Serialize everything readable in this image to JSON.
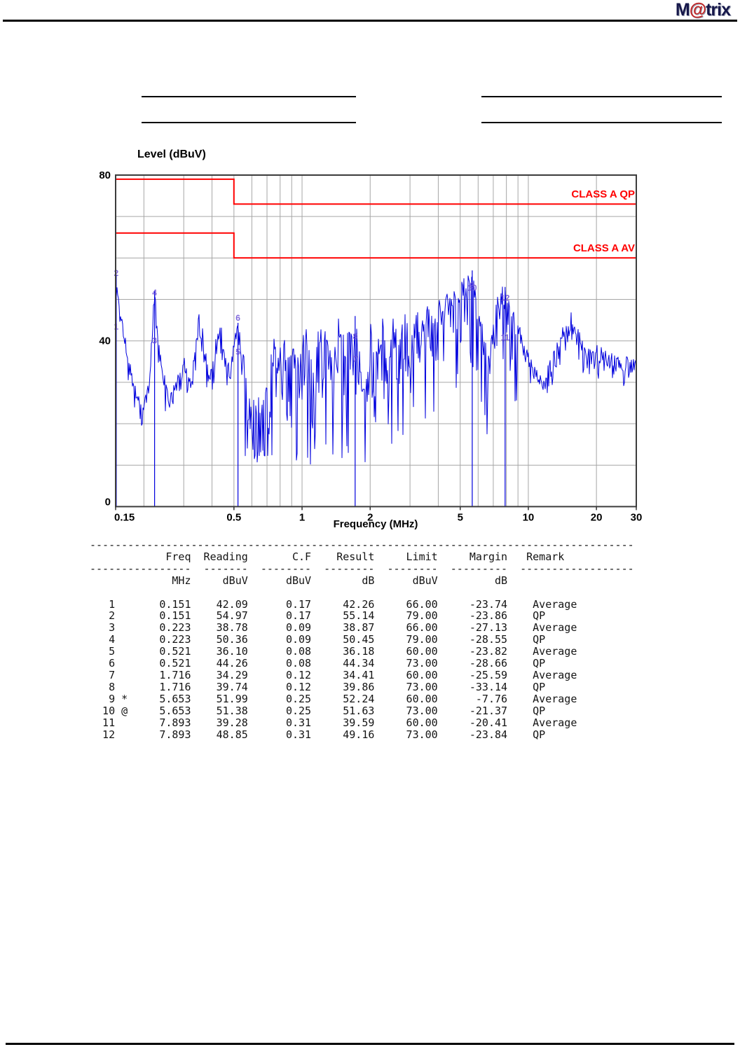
{
  "logo": {
    "m": "M",
    "at": "@",
    "trix": "trix"
  },
  "chart": {
    "ylabel": "Level (dBuV)",
    "xlabel": "Frequency (MHz)",
    "class_a_qp_label": "CLASS A QP",
    "class_a_av_label": "CLASS A AV"
  },
  "chart_data": {
    "type": "line",
    "title": "",
    "xlabel": "Frequency (MHz)",
    "ylabel": "Level (dBuV)",
    "x_scale": "log",
    "xlim": [
      0.15,
      30
    ],
    "ylim": [
      0,
      80
    ],
    "x_ticks": [
      "0.15",
      "0.5",
      "1",
      "2",
      "5",
      "10",
      "20",
      "30"
    ],
    "x_tick_values": [
      0.15,
      0.5,
      1,
      2,
      5,
      10,
      20,
      30
    ],
    "y_ticks": [
      "0",
      "40",
      "80"
    ],
    "y_tick_values": [
      0,
      40,
      80
    ],
    "grid": {
      "x_lines": [
        0.2,
        0.3,
        0.4,
        0.5,
        0.6,
        0.7,
        0.8,
        0.9,
        1,
        2,
        3,
        4,
        5,
        6,
        7,
        8,
        9,
        10,
        20
      ],
      "y_step": 10
    },
    "legend_position": "none",
    "limit_lines": [
      {
        "label": "CLASS A QP",
        "color": "#ff0000",
        "points": [
          [
            0.15,
            79
          ],
          [
            0.5,
            79
          ],
          [
            0.5,
            73
          ],
          [
            30,
            73
          ]
        ]
      },
      {
        "label": "CLASS A AV",
        "color": "#ff0000",
        "points": [
          [
            0.15,
            66
          ],
          [
            0.5,
            66
          ],
          [
            0.5,
            60
          ],
          [
            30,
            60
          ]
        ]
      }
    ],
    "trace_color": "#0000dd",
    "marker_color": "#6a4fd8",
    "grid_color": "#a6a6a6",
    "trace_envelope": [
      [
        0.15,
        57
      ],
      [
        0.152,
        55
      ],
      [
        0.158,
        46
      ],
      [
        0.165,
        40
      ],
      [
        0.175,
        33
      ],
      [
        0.185,
        28
      ],
      [
        0.195,
        25
      ],
      [
        0.205,
        28
      ],
      [
        0.214,
        35
      ],
      [
        0.223,
        52
      ],
      [
        0.232,
        40
      ],
      [
        0.245,
        31
      ],
      [
        0.26,
        28
      ],
      [
        0.275,
        29
      ],
      [
        0.29,
        33
      ],
      [
        0.3,
        36
      ],
      [
        0.315,
        30
      ],
      [
        0.33,
        34
      ],
      [
        0.35,
        47
      ],
      [
        0.37,
        40
      ],
      [
        0.39,
        31
      ],
      [
        0.41,
        36
      ],
      [
        0.43,
        46
      ],
      [
        0.455,
        36
      ],
      [
        0.48,
        34
      ],
      [
        0.5,
        40
      ],
      [
        0.521,
        44
      ],
      [
        0.545,
        38
      ],
      [
        0.58,
        30
      ],
      [
        0.62,
        26
      ],
      [
        0.66,
        24
      ],
      [
        0.7,
        30
      ],
      [
        0.74,
        42
      ],
      [
        0.78,
        36
      ],
      [
        0.82,
        43
      ],
      [
        0.86,
        36
      ],
      [
        0.9,
        44
      ],
      [
        0.95,
        38
      ],
      [
        1.0,
        42
      ],
      [
        1.05,
        45
      ],
      [
        1.1,
        36
      ],
      [
        1.15,
        43
      ],
      [
        1.25,
        45
      ],
      [
        1.35,
        37
      ],
      [
        1.45,
        44
      ],
      [
        1.55,
        40
      ],
      [
        1.65,
        44
      ],
      [
        1.716,
        46
      ],
      [
        1.8,
        38
      ],
      [
        1.9,
        34
      ],
      [
        2.0,
        44
      ],
      [
        2.1,
        36
      ],
      [
        2.25,
        45
      ],
      [
        2.4,
        38
      ],
      [
        2.55,
        46
      ],
      [
        2.7,
        40
      ],
      [
        2.85,
        47
      ],
      [
        3.0,
        42
      ],
      [
        3.2,
        48
      ],
      [
        3.4,
        44
      ],
      [
        3.6,
        49
      ],
      [
        3.8,
        45
      ],
      [
        4.0,
        51
      ],
      [
        4.2,
        47
      ],
      [
        4.4,
        52
      ],
      [
        4.6,
        49
      ],
      [
        4.8,
        54
      ],
      [
        5.0,
        51
      ],
      [
        5.2,
        56
      ],
      [
        5.4,
        54
      ],
      [
        5.653,
        57
      ],
      [
        5.85,
        54
      ],
      [
        6.0,
        51
      ],
      [
        6.2,
        46
      ],
      [
        6.4,
        41
      ],
      [
        6.6,
        37
      ],
      [
        6.8,
        39
      ],
      [
        7.0,
        44
      ],
      [
        7.2,
        48
      ],
      [
        7.5,
        51
      ],
      [
        7.893,
        53
      ],
      [
        8.2,
        50
      ],
      [
        8.6,
        46
      ],
      [
        9.0,
        43
      ],
      [
        9.5,
        40
      ],
      [
        10,
        37
      ],
      [
        10.8,
        33
      ],
      [
        11.5,
        31
      ],
      [
        12.5,
        34
      ],
      [
        13.5,
        39
      ],
      [
        14.5,
        44
      ],
      [
        15.5,
        46
      ],
      [
        16.5,
        42
      ],
      [
        17.5,
        39
      ],
      [
        18.5,
        37
      ],
      [
        20,
        38
      ],
      [
        22,
        36
      ],
      [
        24,
        37
      ],
      [
        26,
        34
      ],
      [
        28,
        36
      ],
      [
        30,
        34
      ]
    ],
    "markers": [
      {
        "no": 1,
        "freq": 0.151,
        "level": 42.26
      },
      {
        "no": 2,
        "freq": 0.151,
        "level": 55.14
      },
      {
        "no": 3,
        "freq": 0.223,
        "level": 38.87
      },
      {
        "no": 4,
        "freq": 0.223,
        "level": 50.45
      },
      {
        "no": 5,
        "freq": 0.521,
        "level": 36.18
      },
      {
        "no": 6,
        "freq": 0.521,
        "level": 44.34
      },
      {
        "no": 7,
        "freq": 1.716,
        "level": 34.41
      },
      {
        "no": 8,
        "freq": 1.716,
        "level": 39.86
      },
      {
        "no": 9,
        "freq": 5.653,
        "level": 52.24
      },
      {
        "no": 10,
        "freq": 5.653,
        "level": 51.63
      },
      {
        "no": 11,
        "freq": 7.893,
        "level": 39.59
      },
      {
        "no": 12,
        "freq": 7.893,
        "level": 49.16
      }
    ]
  },
  "table": {
    "headers": [
      "Freq",
      "Reading",
      "C.F",
      "Result",
      "Limit",
      "Margin",
      "Remark"
    ],
    "units": [
      "MHz",
      "dBuV",
      "dBuV",
      "dB",
      "dBuV",
      "dB"
    ],
    "rows": [
      {
        "no": 1,
        "flag": "",
        "freq": "0.151",
        "reading": "42.09",
        "cf": "0.17",
        "result": "42.26",
        "limit": "66.00",
        "margin": "-23.74",
        "remark": "Average"
      },
      {
        "no": 2,
        "flag": "",
        "freq": "0.151",
        "reading": "54.97",
        "cf": "0.17",
        "result": "55.14",
        "limit": "79.00",
        "margin": "-23.86",
        "remark": "QP"
      },
      {
        "no": 3,
        "flag": "",
        "freq": "0.223",
        "reading": "38.78",
        "cf": "0.09",
        "result": "38.87",
        "limit": "66.00",
        "margin": "-27.13",
        "remark": "Average"
      },
      {
        "no": 4,
        "flag": "",
        "freq": "0.223",
        "reading": "50.36",
        "cf": "0.09",
        "result": "50.45",
        "limit": "79.00",
        "margin": "-28.55",
        "remark": "QP"
      },
      {
        "no": 5,
        "flag": "",
        "freq": "0.521",
        "reading": "36.10",
        "cf": "0.08",
        "result": "36.18",
        "limit": "60.00",
        "margin": "-23.82",
        "remark": "Average"
      },
      {
        "no": 6,
        "flag": "",
        "freq": "0.521",
        "reading": "44.26",
        "cf": "0.08",
        "result": "44.34",
        "limit": "73.00",
        "margin": "-28.66",
        "remark": "QP"
      },
      {
        "no": 7,
        "flag": "",
        "freq": "1.716",
        "reading": "34.29",
        "cf": "0.12",
        "result": "34.41",
        "limit": "60.00",
        "margin": "-25.59",
        "remark": "Average"
      },
      {
        "no": 8,
        "flag": "",
        "freq": "1.716",
        "reading": "39.74",
        "cf": "0.12",
        "result": "39.86",
        "limit": "73.00",
        "margin": "-33.14",
        "remark": "QP"
      },
      {
        "no": 9,
        "flag": "*",
        "freq": "5.653",
        "reading": "51.99",
        "cf": "0.25",
        "result": "52.24",
        "limit": "60.00",
        "margin": "-7.76",
        "remark": "Average"
      },
      {
        "no": 10,
        "flag": "@",
        "freq": "5.653",
        "reading": "51.38",
        "cf": "0.25",
        "result": "51.63",
        "limit": "73.00",
        "margin": "-21.37",
        "remark": "QP"
      },
      {
        "no": 11,
        "flag": "",
        "freq": "7.893",
        "reading": "39.28",
        "cf": "0.31",
        "result": "39.59",
        "limit": "60.00",
        "margin": "-20.41",
        "remark": "Average"
      },
      {
        "no": 12,
        "flag": "",
        "freq": "7.893",
        "reading": "48.85",
        "cf": "0.31",
        "result": "49.16",
        "limit": "73.00",
        "margin": "-23.84",
        "remark": "QP"
      }
    ]
  }
}
